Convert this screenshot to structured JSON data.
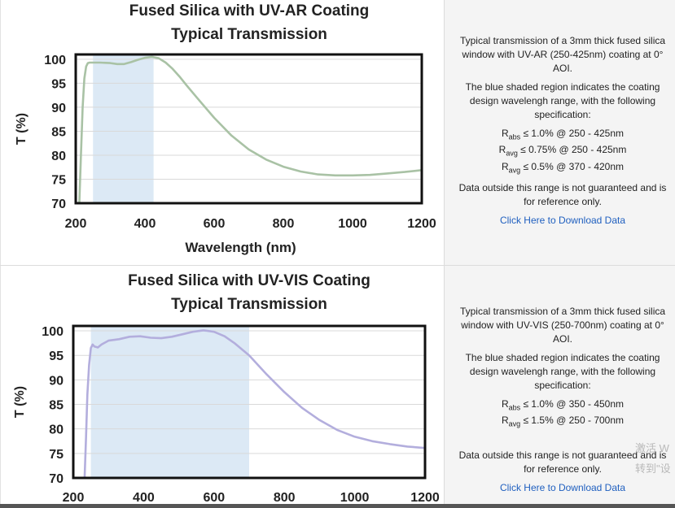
{
  "rows": [
    {
      "description": "Typical transmission of a 3mm thick fused silica window with UV-AR (250-425nm) coating at 0° AOI.",
      "region_text": "The blue shaded region indicates the coating design wavelengh range, with the following specification:",
      "specs": [
        {
          "sym": "R",
          "sub": "abs",
          "text": " ≤ 1.0% @ 250 - 425nm"
        },
        {
          "sym": "R",
          "sub": "avg",
          "text": " ≤ 0.75% @ 250 - 425nm"
        },
        {
          "sym": "R",
          "sub": "avg",
          "text": " ≤ 0.5% @ 370 - 420nm"
        }
      ],
      "disclaimer": "Data outside this range is not guaranteed and is for reference only.",
      "link": "Click Here to Download Data"
    },
    {
      "description": "Typical transmission of a 3mm thick fused silica window with UV-VIS (250-700nm) coating at 0° AOI.",
      "region_text": "The blue shaded region indicates the coating design wavelengh range, with the following specification:",
      "specs": [
        {
          "sym": "R",
          "sub": "abs",
          "text": " ≤ 1.0% @ 350 - 450nm"
        },
        {
          "sym": "R",
          "sub": "avg",
          "text": " ≤ 1.5% @ 250 - 700nm"
        }
      ],
      "disclaimer": "Data outside this range is not guaranteed and is for reference only.",
      "link": "Click Here to Download Data"
    }
  ],
  "watermark": [
    "激活 W",
    "转到\"设"
  ],
  "chart_data": [
    {
      "type": "line",
      "title": "Fused Silica with UV-AR Coating",
      "subtitle": "Typical Transmission",
      "xlabel": "Wavelength (nm)",
      "ylabel": "T (%)",
      "xlim": [
        200,
        1200
      ],
      "ylim": [
        70,
        101
      ],
      "xticks": [
        200,
        400,
        600,
        800,
        1000,
        1200
      ],
      "yticks": [
        70,
        75,
        80,
        85,
        90,
        95,
        100
      ],
      "shaded_region": [
        250,
        425
      ],
      "grid": true,
      "line_color": "#a9c2a5",
      "shade_color": "#dce9f5",
      "series": [
        {
          "x": [
            210,
            215,
            220,
            225,
            230,
            235,
            240,
            250,
            270,
            300,
            320,
            340,
            360,
            380,
            400,
            420,
            440,
            460,
            480,
            500,
            520,
            550,
            600,
            650,
            700,
            750,
            800,
            850,
            900,
            950,
            1000,
            1050,
            1100,
            1150,
            1200
          ],
          "y": [
            69.5,
            80,
            90,
            96,
            98.5,
            99.2,
            99.3,
            99.3,
            99.3,
            99.2,
            99,
            99,
            99.4,
            99.9,
            100.3,
            100.5,
            100.2,
            99.3,
            98,
            96.4,
            94.6,
            92,
            87.8,
            84.1,
            81.2,
            79.1,
            77.6,
            76.6,
            76,
            75.8,
            75.8,
            75.9,
            76.2,
            76.5,
            76.9
          ]
        }
      ]
    },
    {
      "type": "line",
      "title": "Fused Silica with UV-VIS Coating",
      "subtitle": "Typical Transmission",
      "xlabel": "",
      "ylabel": "T (%)",
      "xlim": [
        200,
        1200
      ],
      "ylim": [
        70,
        101
      ],
      "xticks": [
        200,
        400,
        600,
        800,
        1000,
        1200
      ],
      "yticks": [
        70,
        75,
        80,
        85,
        90,
        95,
        100
      ],
      "shaded_region": [
        250,
        700
      ],
      "grid": true,
      "line_color": "#b3aedd",
      "shade_color": "#dce9f5",
      "series": [
        {
          "x": [
            232,
            236,
            240,
            245,
            250,
            255,
            260,
            270,
            280,
            300,
            330,
            360,
            390,
            420,
            450,
            480,
            510,
            540,
            570,
            600,
            630,
            660,
            700,
            750,
            800,
            850,
            900,
            950,
            1000,
            1050,
            1100,
            1150,
            1200
          ],
          "y": [
            69.5,
            78,
            87,
            93,
            96.5,
            97.2,
            96.8,
            96.6,
            97.2,
            98,
            98.3,
            98.8,
            98.9,
            98.6,
            98.5,
            98.8,
            99.3,
            99.8,
            100.1,
            99.8,
            98.9,
            97.4,
            95,
            91.1,
            87.5,
            84.3,
            81.8,
            79.8,
            78.4,
            77.5,
            76.9,
            76.4,
            76.1
          ]
        }
      ]
    }
  ]
}
